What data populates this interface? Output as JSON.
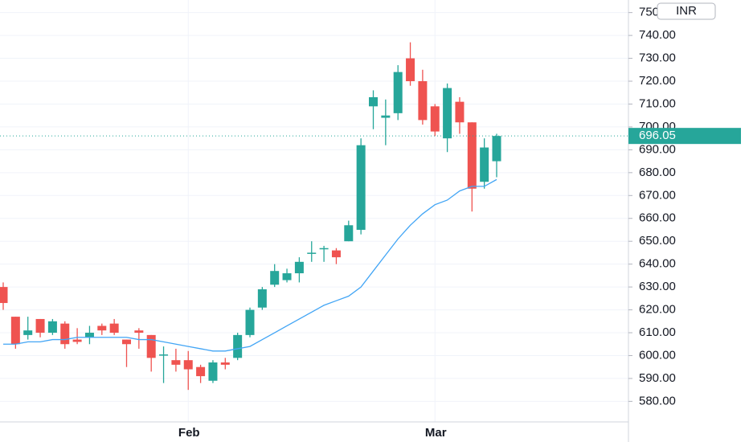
{
  "chart_data": {
    "type": "candlestick",
    "currency": "INR",
    "categories": [
      null,
      null,
      null,
      null,
      null,
      null,
      null,
      null,
      null,
      null,
      null,
      null,
      null,
      null,
      null,
      "Feb",
      null,
      null,
      null,
      null,
      null,
      null,
      null,
      null,
      null,
      null,
      null,
      null,
      null,
      null,
      null,
      null,
      null,
      null,
      null,
      "Mar",
      null,
      null,
      null,
      null,
      null
    ],
    "open": [
      630,
      617,
      609,
      616,
      610,
      614,
      607,
      608,
      613,
      614,
      607,
      611,
      609,
      600,
      598,
      598,
      595,
      589,
      597,
      599,
      609,
      621,
      631,
      633,
      636,
      645,
      647,
      646,
      650,
      655,
      709,
      704,
      706,
      730,
      720,
      709,
      695,
      711,
      702,
      676,
      685
    ],
    "high": [
      632,
      617,
      617,
      616,
      616,
      615,
      612,
      613,
      614,
      616,
      607,
      612,
      609,
      604,
      603,
      602,
      596,
      598,
      599,
      610,
      621,
      630,
      640,
      638,
      643,
      650,
      648,
      647,
      659,
      695,
      716,
      712,
      727,
      737,
      725,
      710,
      719,
      713,
      702,
      695,
      697
    ],
    "low": [
      620,
      603,
      607,
      608,
      609,
      603,
      605,
      605,
      609,
      609,
      595,
      603,
      593,
      588,
      593,
      585,
      588,
      588,
      594,
      598,
      608,
      620,
      630,
      632,
      632,
      641,
      641,
      640,
      650,
      653,
      699,
      692,
      703,
      718,
      701,
      696,
      689,
      697,
      663,
      673,
      678
    ],
    "close": [
      623,
      605,
      611,
      610,
      615,
      605,
      606,
      610,
      611,
      610,
      605,
      610,
      599,
      600.5,
      596,
      594,
      591,
      597,
      596,
      609,
      620,
      629,
      637,
      636,
      641,
      645,
      647,
      643,
      657,
      692,
      713,
      705,
      724,
      720,
      703,
      698,
      717,
      702,
      673,
      691,
      696.05
    ],
    "up_color": "#26a69a",
    "down_color": "#ef5350",
    "moving_average": {
      "color": "#42a5f5",
      "values": [
        605,
        605,
        606,
        606,
        607,
        607,
        608,
        608,
        608,
        608,
        608,
        607,
        607,
        606,
        605,
        604,
        603,
        602,
        602,
        603,
        604,
        607,
        610,
        613,
        616,
        619,
        622,
        624,
        626,
        630,
        637,
        644,
        651,
        657,
        662,
        666,
        668,
        672,
        674,
        674,
        677
      ]
    },
    "last_price": 696.05,
    "ylim": [
      571,
      755.5
    ],
    "yticks": [
      {
        "value": 580,
        "label": "580.00"
      },
      {
        "value": 590,
        "label": "590.00"
      },
      {
        "value": 600,
        "label": "600.00"
      },
      {
        "value": 610,
        "label": "610.00"
      },
      {
        "value": 620,
        "label": "620.00"
      },
      {
        "value": 630,
        "label": "630.00"
      },
      {
        "value": 640,
        "label": "640.00"
      },
      {
        "value": 650,
        "label": "650.00"
      },
      {
        "value": 660,
        "label": "660.00"
      },
      {
        "value": 670,
        "label": "670.00"
      },
      {
        "value": 680,
        "label": "680.00"
      },
      {
        "value": 690,
        "label": "690.00"
      },
      {
        "value": 700,
        "label": "700.00"
      },
      {
        "value": 710,
        "label": "710.00"
      },
      {
        "value": 720,
        "label": "720.00"
      },
      {
        "value": 730,
        "label": "730.00"
      },
      {
        "value": 740,
        "label": "740.00"
      },
      {
        "value": 750,
        "label": "750.00"
      }
    ],
    "grid": true
  }
}
